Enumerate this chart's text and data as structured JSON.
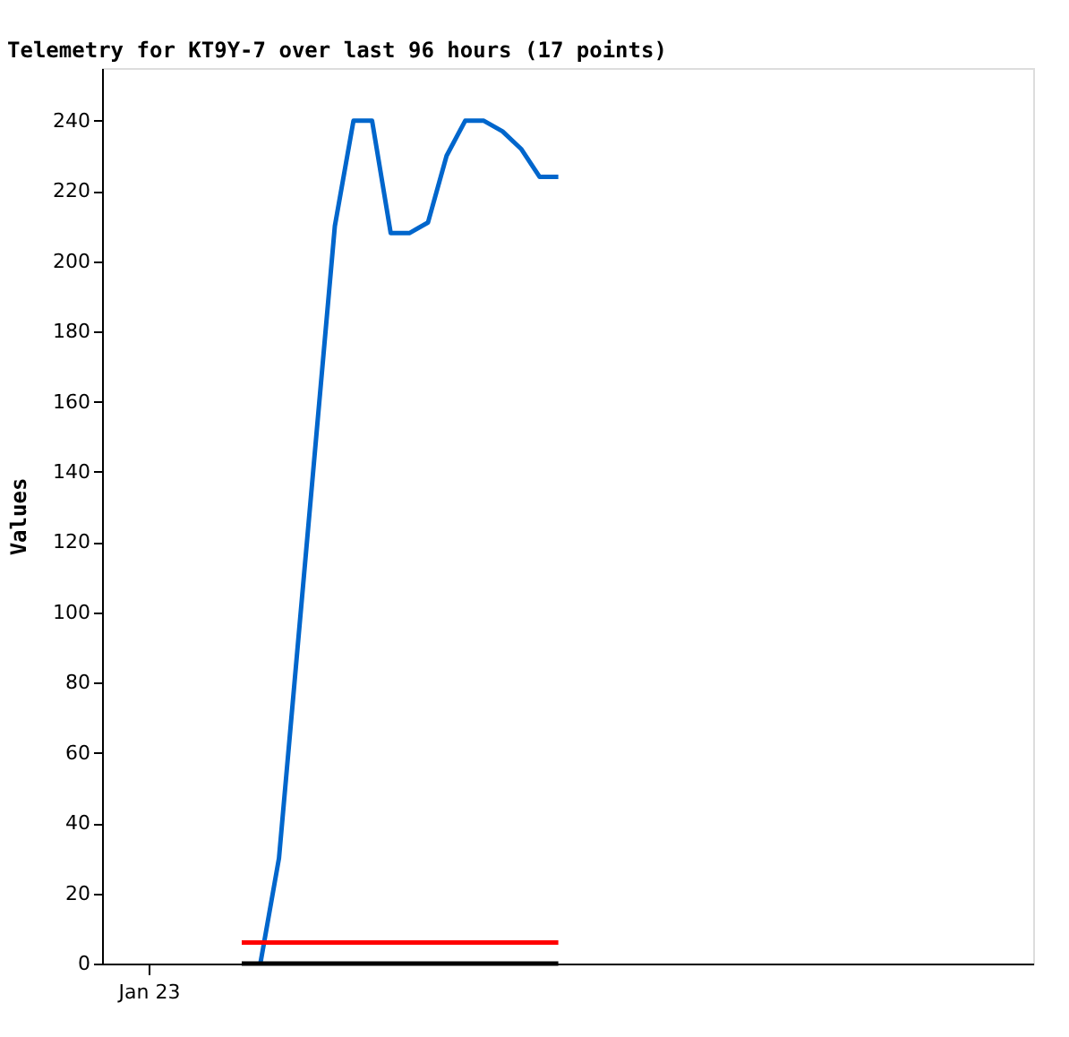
{
  "chart_data": {
    "type": "line",
    "title": "Telemetry for KT9Y-7 over last 96 hours (17 points)",
    "ylabel": "Values",
    "categories": [
      null,
      null,
      "Jan 23",
      null,
      null,
      null,
      null,
      null,
      null,
      null,
      null,
      null,
      null,
      null,
      null,
      null,
      null,
      null,
      null,
      null,
      null,
      null,
      null,
      null,
      null,
      null,
      null,
      null,
      null,
      null,
      null,
      null,
      null,
      null,
      null,
      null,
      null,
      null,
      null,
      null,
      null,
      null,
      null,
      null,
      null,
      null,
      null,
      null,
      null,
      null
    ],
    "ylim": [
      0,
      255
    ],
    "yticks": [
      0,
      20,
      40,
      60,
      80,
      100,
      120,
      140,
      160,
      180,
      200,
      220,
      240
    ],
    "grid": false,
    "legend": false,
    "marker": "none",
    "line_style": "solid",
    "series": [
      {
        "color": "#0066cc",
        "values": [
          null,
          null,
          null,
          null,
          null,
          null,
          null,
          null,
          0,
          30,
          90,
          150,
          210,
          240,
          240,
          208,
          208,
          211,
          230,
          240,
          240,
          237,
          232,
          224,
          224,
          null,
          null,
          null,
          null,
          null,
          null,
          null,
          null,
          null,
          null,
          null,
          null,
          null,
          null,
          null,
          null,
          null,
          null,
          null,
          null,
          null,
          null,
          null,
          null,
          null
        ]
      },
      {
        "color": "#ff0000",
        "values": [
          null,
          null,
          null,
          null,
          null,
          null,
          null,
          6,
          6,
          6,
          6,
          6,
          6,
          6,
          6,
          6,
          6,
          6,
          6,
          6,
          6,
          6,
          6,
          6,
          6,
          null,
          null,
          null,
          null,
          null,
          null,
          null,
          null,
          null,
          null,
          null,
          null,
          null,
          null,
          null,
          null,
          null,
          null,
          null,
          null,
          null,
          null,
          null,
          null,
          null
        ]
      },
      {
        "color": "#000000",
        "values": [
          null,
          null,
          null,
          null,
          null,
          null,
          null,
          0,
          0,
          0,
          0,
          0,
          0,
          0,
          0,
          0,
          0,
          0,
          0,
          0,
          0,
          0,
          0,
          0,
          0,
          null,
          null,
          null,
          null,
          null,
          null,
          null,
          null,
          null,
          null,
          null,
          null,
          null,
          null,
          null,
          null,
          null,
          null,
          null,
          null,
          null,
          null,
          null,
          null,
          null
        ]
      }
    ]
  }
}
